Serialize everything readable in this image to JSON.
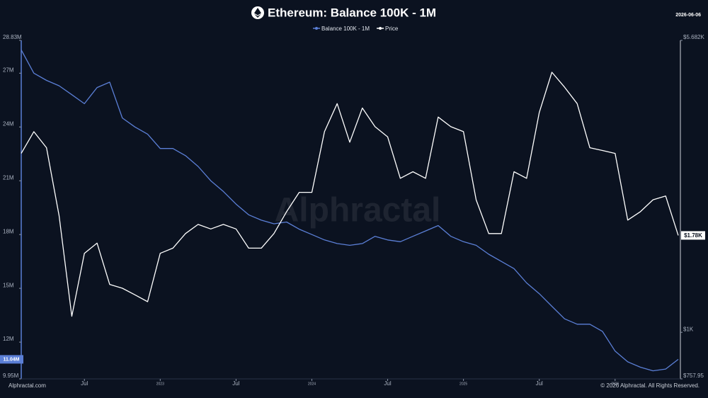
{
  "chart_data": {
    "type": "line",
    "title": "Ethereum: Balance 100K - 1M",
    "date": "2026-06-06",
    "watermark": "Alphractal",
    "footer_left": "Alphractal.com",
    "footer_right": "© 2026 Alphractal. All Rights Reserved.",
    "x": [
      "2022-02",
      "2022-03",
      "2022-04",
      "2022-05",
      "2022-06",
      "2022-07",
      "2022-08",
      "2022-09",
      "2022-10",
      "2022-11",
      "2022-12",
      "2023-01",
      "2023-02",
      "2023-03",
      "2023-04",
      "2023-05",
      "2023-06",
      "2023-07",
      "2023-08",
      "2023-09",
      "2023-10",
      "2023-11",
      "2023-12",
      "2024-01",
      "2024-02",
      "2024-03",
      "2024-04",
      "2024-05",
      "2024-06",
      "2024-07",
      "2024-08",
      "2024-09",
      "2024-10",
      "2024-11",
      "2024-12",
      "2025-01",
      "2025-02",
      "2025-03",
      "2025-04",
      "2025-05",
      "2025-06",
      "2025-07",
      "2025-08",
      "2025-09",
      "2025-10",
      "2025-11",
      "2025-12",
      "2026-01",
      "2026-02",
      "2026-03",
      "2026-04",
      "2026-05",
      "2026-06"
    ],
    "xlim": [
      "2022-02",
      "2026-06"
    ],
    "xticks": [
      {
        "value": "2022-07",
        "label": "Jul"
      },
      {
        "value": "2023-01",
        "label": "2023"
      },
      {
        "value": "2023-07",
        "label": "Jul"
      },
      {
        "value": "2024-01",
        "label": "2024"
      },
      {
        "value": "2024-07",
        "label": "Jul"
      },
      {
        "value": "2025-01",
        "label": "2025"
      },
      {
        "value": "2025-07",
        "label": "Jul"
      },
      {
        "value": "2026-01",
        "label": "2026"
      }
    ],
    "ylim": [
      9.95,
      28.83
    ],
    "yticks": [
      {
        "value": 9.95,
        "label": "9.95M"
      },
      {
        "value": 12,
        "label": "12M"
      },
      {
        "value": 15,
        "label": "15M"
      },
      {
        "value": 18,
        "label": "18M"
      },
      {
        "value": 21,
        "label": "21M"
      },
      {
        "value": 24,
        "label": "24M"
      },
      {
        "value": 27,
        "label": "27M"
      },
      {
        "value": 28.83,
        "label": "28.83M"
      }
    ],
    "y2lim": [
      757.95,
      5682
    ],
    "y2scale": "log",
    "y2ticks": [
      {
        "value": 757.95,
        "label": "$757.95"
      },
      {
        "value": 1000,
        "label": "$1K"
      },
      {
        "value": 5682,
        "label": "$5.682K"
      }
    ],
    "series": [
      {
        "name": "Balance 100K - 1M",
        "color": "#5b7fd6",
        "last_label": "11.04M",
        "values": [
          28.3,
          27.0,
          26.6,
          26.3,
          25.8,
          25.3,
          26.2,
          26.5,
          24.5,
          24.0,
          23.6,
          22.8,
          22.8,
          22.4,
          21.8,
          21.0,
          20.4,
          19.7,
          19.1,
          18.8,
          18.6,
          18.7,
          18.3,
          18.0,
          17.7,
          17.5,
          17.4,
          17.5,
          17.9,
          17.7,
          17.6,
          17.9,
          18.2,
          18.5,
          17.9,
          17.6,
          17.4,
          16.9,
          16.5,
          16.1,
          15.3,
          14.7,
          14.0,
          13.3,
          13.0,
          13.0,
          12.6,
          11.5,
          10.9,
          10.6,
          10.4,
          10.5,
          11.04
        ]
      },
      {
        "name": "Price",
        "color": "#ffffff",
        "axis": "y2",
        "last_label": "$1.78K",
        "values": [
          2900,
          3300,
          3000,
          2000,
          1100,
          1600,
          1700,
          1330,
          1300,
          1250,
          1200,
          1600,
          1650,
          1800,
          1900,
          1850,
          1900,
          1850,
          1650,
          1650,
          1800,
          2050,
          2300,
          2300,
          3300,
          3900,
          3100,
          3800,
          3400,
          3200,
          2500,
          2600,
          2500,
          3600,
          3400,
          3300,
          2200,
          1800,
          1800,
          2600,
          2500,
          3700,
          4700,
          4300,
          3900,
          3000,
          2950,
          2900,
          1950,
          2050,
          2200,
          2250,
          1780
        ]
      }
    ]
  }
}
